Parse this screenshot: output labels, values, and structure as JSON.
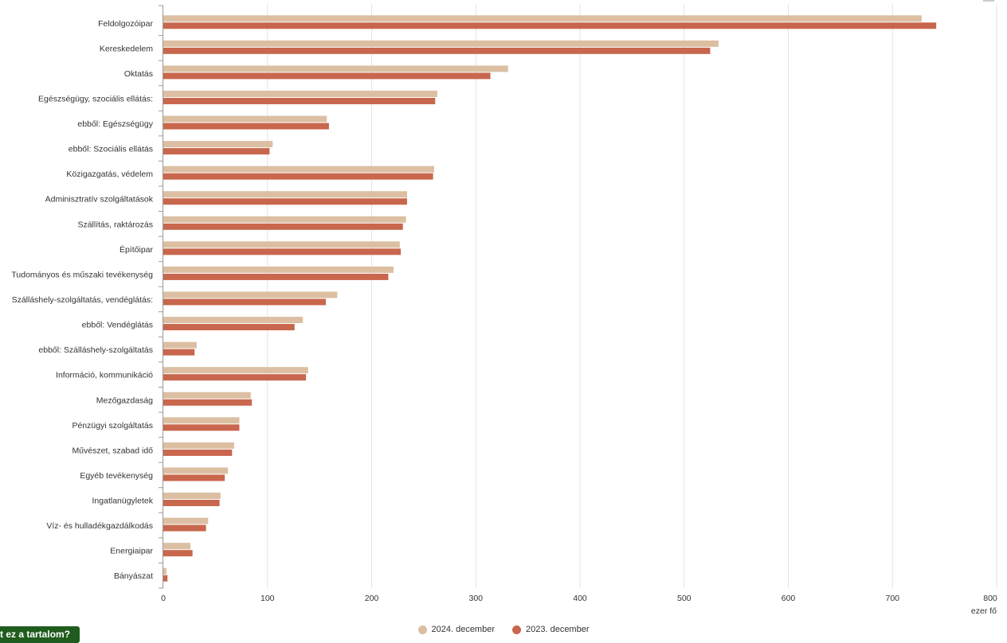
{
  "chart_data": {
    "type": "bar",
    "orientation": "horizontal",
    "categories": [
      "Feldolgozóipar",
      "Kereskedelem",
      "Oktatás",
      "Egészségügy, szociális ellátás:",
      "ebből: Egészségügy",
      "ebből: Szociális ellátás",
      "Közigazgatás, védelem",
      "Adminisztratív szolgáltatások",
      "Szállítás, raktározás",
      "Építőipar",
      "Tudományos és műszaki tevékenység",
      "Szálláshely-szolgáltatás, vendéglátás:",
      "ebből: Vendéglátás",
      "ebből: Szálláshely-szolgáltatás",
      "Információ, kommunikáció",
      "Mezőgazdaság",
      "Pénzügyi szolgáltatás",
      "Művészet, szabad idő",
      "Egyéb tevékenység",
      "Ingatlanügyletek",
      "Víz- és hulladékgazdálkodás",
      "Energiaipar",
      "Bányászat"
    ],
    "series": [
      {
        "name": "2024. december",
        "color": "#dcbfa2",
        "values": [
          728,
          533,
          331,
          263,
          157,
          105,
          260,
          234,
          233,
          227,
          221,
          167,
          134,
          32,
          139,
          84,
          73,
          68,
          62,
          55,
          43,
          26,
          3
        ]
      },
      {
        "name": "2023. december",
        "color": "#c8674d",
        "values": [
          742,
          525,
          314,
          261,
          159,
          102,
          259,
          234,
          230,
          228,
          216,
          156,
          126,
          30,
          137,
          85,
          73,
          66,
          59,
          54,
          41,
          28,
          4
        ]
      }
    ],
    "xlim": [
      0,
      800
    ],
    "xticks": [
      0,
      100,
      200,
      300,
      400,
      500,
      600,
      700,
      800
    ],
    "unit_label": "ezer fő",
    "grid": true,
    "legend_position": "bottom-center"
  },
  "legend": [
    {
      "label": "2024. december",
      "color": "#dcbfa2"
    },
    {
      "label": "2023. december",
      "color": "#c8674d"
    }
  ],
  "feedback_button": {
    "label": "t ez a tartalom?"
  }
}
